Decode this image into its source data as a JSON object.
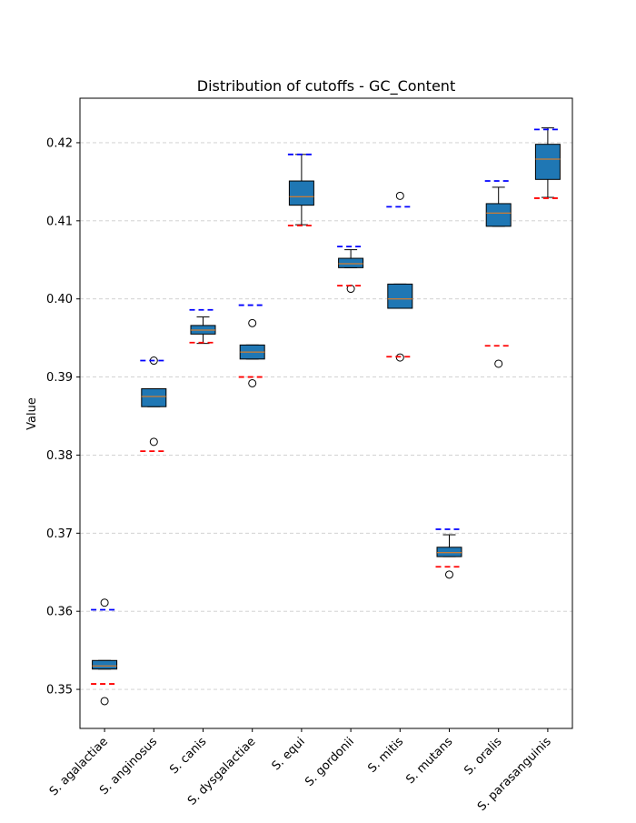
{
  "chart_data": {
    "type": "box",
    "title": "Distribution of cutoffs - GC_Content",
    "xlabel": "",
    "ylabel": "Value",
    "ylim": [
      0.345,
      0.4257
    ],
    "yticks": [
      0.35,
      0.36,
      0.37,
      0.38,
      0.39,
      0.4,
      0.41,
      0.42
    ],
    "ytick_labels": [
      "0.35",
      "0.36",
      "0.37",
      "0.38",
      "0.39",
      "0.40",
      "0.41",
      "0.42"
    ],
    "grid": "horizontal dashed",
    "categories": [
      "S. agalactiae",
      "S. anginosus",
      "S. canis",
      "S. dysgalactiae",
      "S. equi",
      "S. gordonii",
      "S. mitis",
      "S. mutans",
      "S. oralis",
      "S. parasanguinis"
    ],
    "boxes": [
      {
        "q1": 0.3526,
        "median": 0.353,
        "q3": 0.3537,
        "whisker_low": 0.3526,
        "whisker_high": 0.3537,
        "outliers": [
          0.3611,
          0.3485
        ],
        "upper_cutoff": 0.3602,
        "lower_cutoff": 0.3507
      },
      {
        "q1": 0.3862,
        "median": 0.3875,
        "q3": 0.3885,
        "whisker_low": 0.3862,
        "whisker_high": 0.3885,
        "outliers": [
          0.3921,
          0.3817
        ],
        "upper_cutoff": 0.3921,
        "lower_cutoff": 0.3805
      },
      {
        "q1": 0.3955,
        "median": 0.396,
        "q3": 0.3966,
        "whisker_low": 0.3943,
        "whisker_high": 0.3977,
        "outliers": [],
        "upper_cutoff": 0.3986,
        "lower_cutoff": 0.3944
      },
      {
        "q1": 0.3923,
        "median": 0.3932,
        "q3": 0.3941,
        "whisker_low": 0.3923,
        "whisker_high": 0.3941,
        "outliers": [
          0.3969,
          0.3892
        ],
        "upper_cutoff": 0.3992,
        "lower_cutoff": 0.39
      },
      {
        "q1": 0.412,
        "median": 0.4131,
        "q3": 0.4151,
        "whisker_low": 0.4095,
        "whisker_high": 0.4185,
        "outliers": [],
        "upper_cutoff": 0.4185,
        "lower_cutoff": 0.4094
      },
      {
        "q1": 0.404,
        "median": 0.4045,
        "q3": 0.4052,
        "whisker_low": 0.404,
        "whisker_high": 0.4063,
        "outliers": [
          0.4013
        ],
        "upper_cutoff": 0.4067,
        "lower_cutoff": 0.4017
      },
      {
        "q1": 0.3988,
        "median": 0.4,
        "q3": 0.4019,
        "whisker_low": 0.3988,
        "whisker_high": 0.4019,
        "outliers": [
          0.4132,
          0.3925
        ],
        "upper_cutoff": 0.4118,
        "lower_cutoff": 0.3926
      },
      {
        "q1": 0.367,
        "median": 0.3675,
        "q3": 0.3682,
        "whisker_low": 0.367,
        "whisker_high": 0.3698,
        "outliers": [
          0.3647
        ],
        "upper_cutoff": 0.3705,
        "lower_cutoff": 0.3657
      },
      {
        "q1": 0.4093,
        "median": 0.411,
        "q3": 0.4122,
        "whisker_low": 0.4093,
        "whisker_high": 0.4143,
        "outliers": [
          0.3917
        ],
        "upper_cutoff": 0.4151,
        "lower_cutoff": 0.394
      },
      {
        "q1": 0.4153,
        "median": 0.4179,
        "q3": 0.4198,
        "whisker_low": 0.413,
        "whisker_high": 0.4219,
        "outliers": [],
        "upper_cutoff": 0.4217,
        "lower_cutoff": 0.4129
      }
    ],
    "colors": {
      "box_fill": "#1f77b4",
      "box_edge": "#000000",
      "median": "#ff7f0e",
      "upper_cutoff": "#0000ff",
      "lower_cutoff": "#ff0000",
      "grid": "#cccccc"
    }
  }
}
